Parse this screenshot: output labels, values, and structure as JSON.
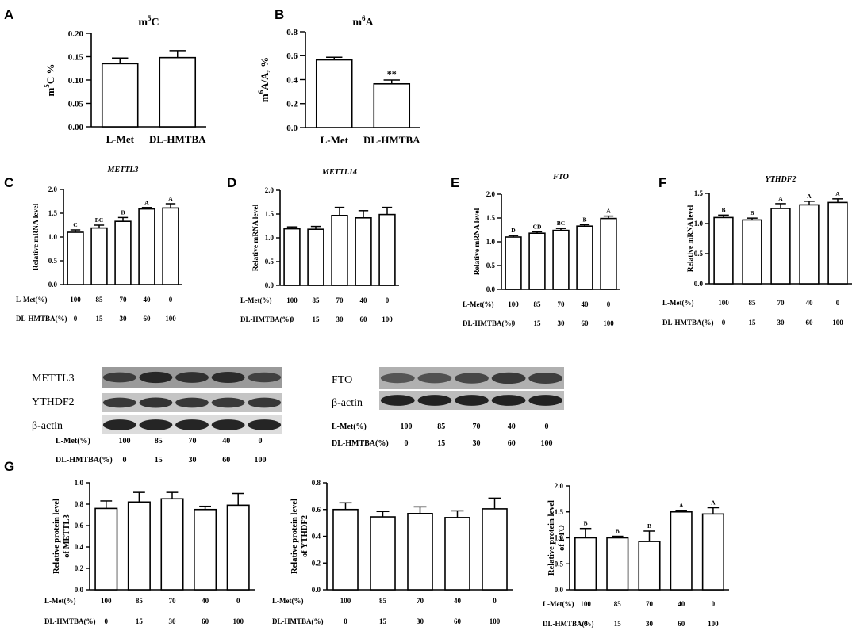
{
  "figure": {
    "panel_letters": [
      "A",
      "B",
      "C",
      "D",
      "E",
      "F",
      "G"
    ],
    "l_met_label": "L-Met(%)",
    "dl_hmtba_label": "DL-HMTBA(%)",
    "l_met_values": [
      "100",
      "85",
      "70",
      "40",
      "0"
    ],
    "dl_hmtba_values": [
      "0",
      "15",
      "30",
      "60",
      "100"
    ]
  },
  "blots": {
    "left_labels": [
      "METTL3",
      "YTHDF2",
      "β-actin"
    ],
    "right_labels": [
      "FTO",
      "β-actin"
    ]
  },
  "chart_data": [
    {
      "panel": "A",
      "type": "bar",
      "title": "m5C",
      "title_parts": [
        "m",
        "5",
        "C"
      ],
      "ylabel_parts": [
        "m",
        "5",
        "C %"
      ],
      "categories": [
        "L-Met",
        "DL-HMTBA"
      ],
      "values": [
        0.135,
        0.148
      ],
      "errors": [
        0.012,
        0.015
      ],
      "ylim": [
        0,
        0.2
      ],
      "yticks": [
        "0.00",
        "0.05",
        "0.10",
        "0.15",
        "0.20"
      ],
      "sig": [
        "",
        ""
      ]
    },
    {
      "panel": "B",
      "type": "bar",
      "title": "m6A",
      "title_parts": [
        "m",
        "6",
        "A"
      ],
      "ylabel_parts": [
        "m",
        "6",
        "A/A, %"
      ],
      "categories": [
        "L-Met",
        "DL-HMTBA"
      ],
      "values": [
        0.565,
        0.365
      ],
      "errors": [
        0.022,
        0.032
      ],
      "ylim": [
        0,
        0.8
      ],
      "yticks": [
        "0.0",
        "0.2",
        "0.4",
        "0.6",
        "0.8"
      ],
      "sig": [
        "",
        "**"
      ]
    },
    {
      "panel": "C",
      "type": "bar",
      "title": "METTL3",
      "ylabel": "Relative mRNA level",
      "values": [
        1.1,
        1.19,
        1.33,
        1.59,
        1.61
      ],
      "errors": [
        0.05,
        0.06,
        0.08,
        0.03,
        0.09
      ],
      "ylim": [
        0,
        2
      ],
      "yticks": [
        "0.0",
        "0.5",
        "1.0",
        "1.5",
        "2.0"
      ],
      "sig": [
        "C",
        "BC",
        "B",
        "A",
        "A"
      ]
    },
    {
      "panel": "D",
      "type": "bar",
      "title": "METTL14",
      "ylabel": "Relative mRNA level",
      "values": [
        1.19,
        1.18,
        1.47,
        1.42,
        1.49
      ],
      "errors": [
        0.04,
        0.06,
        0.17,
        0.15,
        0.15
      ],
      "ylim": [
        0,
        2
      ],
      "yticks": [
        "0.0",
        "0.5",
        "1.0",
        "1.5",
        "2.0"
      ],
      "sig": [
        "",
        "",
        "",
        "",
        ""
      ]
    },
    {
      "panel": "E",
      "type": "bar",
      "title": "FTO",
      "ylabel": "Relative mRNA level",
      "values": [
        1.1,
        1.18,
        1.24,
        1.33,
        1.49
      ],
      "errors": [
        0.03,
        0.03,
        0.04,
        0.03,
        0.05
      ],
      "ylim": [
        0,
        2
      ],
      "yticks": [
        "0.0",
        "0.5",
        "1.0",
        "1.5",
        "2.0"
      ],
      "sig": [
        "D",
        "CD",
        "BC",
        "B",
        "A"
      ]
    },
    {
      "panel": "F",
      "type": "bar",
      "title": "YTHDF2",
      "ylabel": "Relative mRNA level",
      "values": [
        1.1,
        1.06,
        1.25,
        1.31,
        1.35
      ],
      "errors": [
        0.04,
        0.03,
        0.08,
        0.06,
        0.06
      ],
      "ylim": [
        0,
        1.5
      ],
      "yticks": [
        "0.0",
        "0.5",
        "1.0",
        "1.5"
      ],
      "sig": [
        "B",
        "B",
        "A",
        "A",
        "A"
      ]
    },
    {
      "panel": "G1",
      "type": "bar",
      "title": "",
      "ylabel": "Relative protein level of METTL3",
      "ylabel_lines": [
        "Relative protein level",
        "of METTL3"
      ],
      "values": [
        0.76,
        0.82,
        0.85,
        0.75,
        0.79
      ],
      "errors": [
        0.07,
        0.09,
        0.06,
        0.03,
        0.11
      ],
      "ylim": [
        0,
        1
      ],
      "yticks": [
        "0.0",
        "0.2",
        "0.4",
        "0.6",
        "0.8",
        "1.0"
      ],
      "sig": [
        "",
        "",
        "",
        "",
        ""
      ]
    },
    {
      "panel": "G2",
      "type": "bar",
      "title": "",
      "ylabel": "Relative protein level of YTHDF2",
      "ylabel_lines": [
        "Relative protein level",
        "of YTHDF2"
      ],
      "values": [
        0.6,
        0.545,
        0.57,
        0.54,
        0.605
      ],
      "errors": [
        0.05,
        0.04,
        0.05,
        0.05,
        0.08
      ],
      "ylim": [
        0,
        0.8
      ],
      "yticks": [
        "0.0",
        "0.2",
        "0.4",
        "0.6",
        "0.8"
      ],
      "sig": [
        "",
        "",
        "",
        "",
        ""
      ]
    },
    {
      "panel": "G3",
      "type": "bar",
      "title": "",
      "ylabel": "Relative protein level of FTO",
      "ylabel_lines": [
        "Relative protein level",
        "of FTO"
      ],
      "values": [
        1.0,
        1.0,
        0.93,
        1.5,
        1.46
      ],
      "errors": [
        0.18,
        0.03,
        0.2,
        0.03,
        0.12
      ],
      "ylim": [
        0,
        2
      ],
      "yticks": [
        "0.0",
        "0.5",
        "1.0",
        "1.5",
        "2.0"
      ],
      "sig": [
        "B",
        "B",
        "B",
        "A",
        "A"
      ]
    }
  ]
}
